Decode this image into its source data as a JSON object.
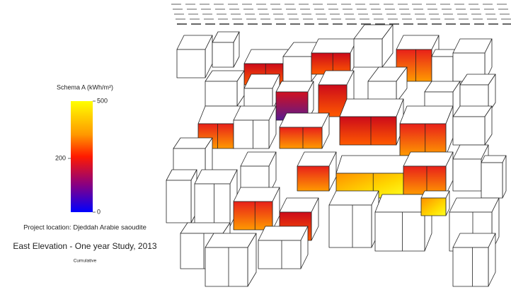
{
  "legend": {
    "title": "Schema A (kWh/m²)",
    "ticks": [
      500,
      200,
      0
    ]
  },
  "location": "Project location: Djeddah Arabie saoudite",
  "study": "East Elevation - One year Study, 2013",
  "mode": "Cumulative"
}
